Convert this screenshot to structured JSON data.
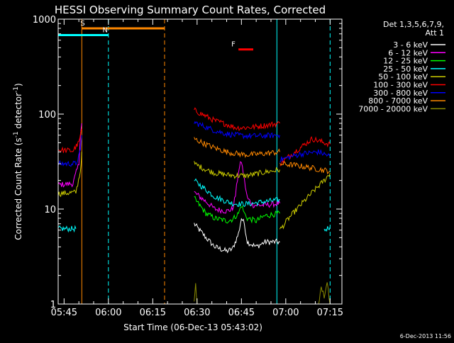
{
  "chart_data": {
    "type": "line",
    "title": "HESSI Observing Summary Count Rates, Corrected",
    "xlabel": "Start Time (06-Dec-13 05:43:02)",
    "ylabel_main": "Corrected Count Rate (s",
    "ylabel_sup1": "-1",
    "ylabel_mid": " detector",
    "ylabel_sup2": "-1",
    "ylabel_end": ")",
    "yscale": "log",
    "xlim_minutes": [
      0,
      96
    ],
    "ylim": [
      1,
      1000
    ],
    "x_ticks": [
      {
        "min": 2,
        "label": "05:45"
      },
      {
        "min": 17,
        "label": "06:00"
      },
      {
        "min": 32,
        "label": "06:15"
      },
      {
        "min": 47,
        "label": "06:30"
      },
      {
        "min": 62,
        "label": "06:45"
      },
      {
        "min": 77,
        "label": "07:00"
      },
      {
        "min": 92,
        "label": "07:15"
      }
    ],
    "y_ticks": [
      {
        "value": 1,
        "label": "1"
      },
      {
        "value": 10,
        "label": "10"
      },
      {
        "value": 100,
        "label": "100"
      },
      {
        "value": 1000,
        "label": "1000"
      }
    ],
    "legend_header": [
      "Det 1,3,5,6,7,9,",
      "Att 1"
    ],
    "series": [
      {
        "name": "3 - 6 keV",
        "color": "#ffffff",
        "segs": [
          [
            [
              46,
              7
            ],
            [
              50,
              5
            ],
            [
              53,
              4
            ],
            [
              57,
              3.6
            ],
            [
              59,
              3.8
            ],
            [
              61,
              5.5
            ],
            [
              62,
              8
            ],
            [
              63,
              7
            ],
            [
              64,
              4.5
            ],
            [
              67,
              4
            ],
            [
              70,
              4.5
            ],
            [
              75,
              4.5
            ]
          ]
        ]
      },
      {
        "name": "6 - 12 keV",
        "color": "#ff00ff",
        "segs": [
          [
            [
              0,
              18
            ],
            [
              5,
              18.5
            ],
            [
              7,
              30
            ],
            [
              7.5,
              60
            ],
            [
              8,
              80
            ]
          ],
          [
            [
              46,
              15
            ],
            [
              50,
              12
            ],
            [
              53,
              10
            ],
            [
              57,
              9.5
            ],
            [
              59,
              10
            ],
            [
              60,
              14
            ],
            [
              61,
              25
            ],
            [
              62,
              32
            ],
            [
              63,
              20
            ],
            [
              64,
              13
            ],
            [
              66,
              11
            ],
            [
              70,
              11
            ],
            [
              75,
              11.5
            ]
          ]
        ]
      },
      {
        "name": "12 - 25 keV",
        "color": "#00ff00",
        "segs": [
          [
            [
              46,
              13
            ],
            [
              50,
              9
            ],
            [
              53,
              8
            ],
            [
              57,
              7.5
            ],
            [
              59,
              7.8
            ],
            [
              61,
              9
            ],
            [
              62,
              11
            ],
            [
              63,
              9
            ],
            [
              64,
              8
            ],
            [
              67,
              7.5
            ],
            [
              70,
              8.5
            ],
            [
              75,
              9
            ]
          ]
        ]
      },
      {
        "name": "25 - 50 keV",
        "color": "#00ffff",
        "segs": [
          [
            [
              0,
              6.2
            ],
            [
              6,
              6.2
            ]
          ],
          [
            [
              46,
              20
            ],
            [
              50,
              16
            ],
            [
              53,
              13.5
            ],
            [
              57,
              12
            ],
            [
              59,
              11.5
            ],
            [
              61,
              11.3
            ],
            [
              63,
              11.3
            ],
            [
              66,
              11.5
            ],
            [
              70,
              12
            ],
            [
              75,
              12.5
            ]
          ],
          [
            [
              90,
              6
            ],
            [
              92,
              6.5
            ]
          ]
        ]
      },
      {
        "name": "50 - 100 keV",
        "color": "#cccc00",
        "segs": [
          [
            [
              0,
              14.5
            ],
            [
              6,
              15
            ],
            [
              7.5,
              25
            ],
            [
              8,
              40
            ]
          ],
          [
            [
              46,
              30
            ],
            [
              50,
              26
            ],
            [
              53,
              24
            ],
            [
              57,
              23
            ],
            [
              60,
              22.5
            ],
            [
              64,
              22.5
            ],
            [
              70,
              24.5
            ],
            [
              75,
              26
            ]
          ],
          [
            [
              75,
              6
            ],
            [
              78,
              8
            ],
            [
              82,
              11
            ],
            [
              86,
              15
            ],
            [
              90,
              20
            ],
            [
              92,
              24
            ]
          ]
        ]
      },
      {
        "name": "100 - 300 keV",
        "color": "#ff0000",
        "segs": [
          [
            [
              0,
              42
            ],
            [
              5,
              41
            ],
            [
              7,
              50
            ],
            [
              8,
              70
            ]
          ],
          [
            [
              46,
              110
            ],
            [
              50,
              95
            ],
            [
              53,
              85
            ],
            [
              57,
              78
            ],
            [
              60,
              72
            ],
            [
              63,
              72
            ],
            [
              66,
              73
            ],
            [
              70,
              76
            ],
            [
              75,
              80
            ]
          ],
          [
            [
              75,
              30
            ],
            [
              80,
              40
            ],
            [
              86,
              55
            ],
            [
              90,
              50
            ],
            [
              92,
              48
            ]
          ]
        ]
      },
      {
        "name": "300 - 800 keV",
        "color": "#0000ff",
        "segs": [
          [
            [
              0,
              30
            ],
            [
              6,
              30
            ],
            [
              7.5,
              40
            ],
            [
              8,
              60
            ]
          ],
          [
            [
              46,
              82
            ],
            [
              50,
              73
            ],
            [
              53,
              67
            ],
            [
              57,
              62
            ],
            [
              60,
              60
            ],
            [
              63,
              59
            ],
            [
              66,
              59
            ],
            [
              70,
              59
            ],
            [
              75,
              60
            ]
          ],
          [
            [
              75,
              33
            ],
            [
              82,
              38
            ],
            [
              88,
              40
            ],
            [
              92,
              36
            ]
          ]
        ]
      },
      {
        "name": "800 - 7000 keV",
        "color": "#ff8800",
        "segs": [
          [
            [
              46,
              55
            ],
            [
              50,
              48
            ],
            [
              53,
              44
            ],
            [
              57,
              40
            ],
            [
              60,
              38.5
            ],
            [
              63,
              37.5
            ],
            [
              66,
              37.5
            ],
            [
              70,
              38.5
            ],
            [
              75,
              40
            ]
          ],
          [
            [
              75,
              30
            ],
            [
              80,
              29
            ],
            [
              86,
              27
            ],
            [
              92,
              25
            ]
          ]
        ]
      },
      {
        "name": "7000 - 20000 keV",
        "color": "#888800",
        "segs": [
          [
            [
              46,
              1
            ],
            [
              46.5,
              1.6
            ],
            [
              47,
              1
            ]
          ],
          [
            [
              88,
              1
            ],
            [
              89,
              1.5
            ],
            [
              90,
              1.2
            ],
            [
              91,
              1.7
            ],
            [
              92,
              1
            ]
          ]
        ]
      }
    ],
    "state_bars": [
      {
        "label": "S",
        "color": "#ff8800",
        "x0": 8,
        "x1": 36,
        "value": 800
      },
      {
        "label": "N",
        "color": "#00ffff",
        "x0": 0,
        "x1": 17,
        "value": 680
      },
      {
        "label": "F",
        "color": "#ff0000",
        "x0": 61,
        "x1": 66,
        "value": 480
      }
    ],
    "state_lines": [
      {
        "color": "#ff8800",
        "style": "solid",
        "x": 8
      },
      {
        "color": "#00ffff",
        "style": "dashed",
        "x": 17
      },
      {
        "color": "#ff8800",
        "style": "dashed",
        "x": 36
      },
      {
        "color": "#00ffff",
        "style": "solid",
        "x": 74
      },
      {
        "color": "#00ffff",
        "style": "dashed",
        "x": 92
      }
    ],
    "footer": "6-Dec-2013 11:56"
  }
}
